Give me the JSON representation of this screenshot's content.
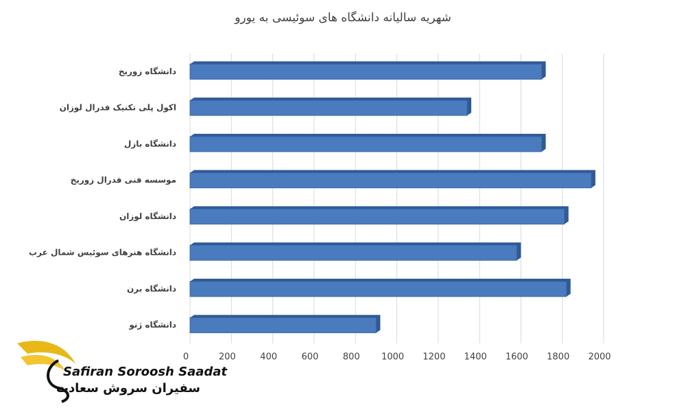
{
  "chart_data": {
    "type": "bar",
    "orientation": "horizontal",
    "title": "شهریه سالیانه دانشگاه های سوئیسی به یورو",
    "categories": [
      "دانشگاه زوریخ",
      "اکول پلی تکنیک فدرال لوزان",
      "دانشگاه بازل",
      "موسسه فنی فدرال زوریخ",
      "دانشگاه لوزان",
      "دانشگاه هنرهای سوئیس شمال غرب",
      "دانشگاه برن",
      "دانشگاه ژنو"
    ],
    "values": [
      1700,
      1340,
      1700,
      1940,
      1810,
      1580,
      1820,
      900
    ],
    "color": "#4a7bbf",
    "xlim": [
      0,
      2000
    ],
    "xticks": [
      0,
      200,
      400,
      600,
      800,
      1000,
      1200,
      1400,
      1600,
      1800,
      2000
    ],
    "grid": true
  },
  "logo": {
    "latin": "Safiran Soroosh Saadat",
    "persian": "سفیران سروش سعادت"
  }
}
